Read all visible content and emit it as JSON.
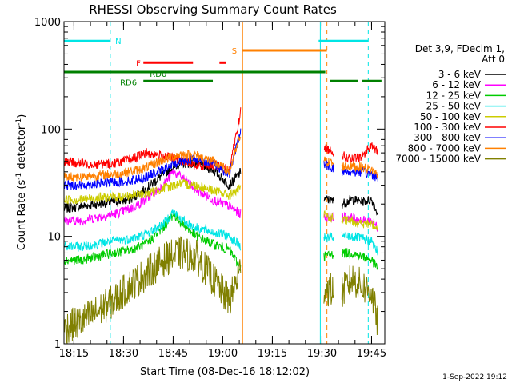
{
  "chart_data": {
    "type": "line",
    "title": "RHESSI Observing Summary Count Rates",
    "xlabel": "Start Time (08-Dec-16 18:12:02)",
    "ylabel": "Count Rate (s-1 detector-1)",
    "ylabel_parts": {
      "pre": "Count Rate (s",
      "sup1": "-1",
      "mid": " detector",
      "sup2": "-1",
      "post": ")"
    },
    "y_scale": "log",
    "ylim": [
      1,
      1000
    ],
    "xlim_minutes": [
      0,
      97
    ],
    "x_ticks": [
      {
        "label": "18:15",
        "min": 3
      },
      {
        "label": "18:30",
        "min": 18
      },
      {
        "label": "18:45",
        "min": 33
      },
      {
        "label": "19:00",
        "min": 48
      },
      {
        "label": "19:15",
        "min": 63
      },
      {
        "label": "19:30",
        "min": 78
      },
      {
        "label": "19:45",
        "min": 93
      }
    ],
    "y_tick_labels": [
      "1",
      "10",
      "100",
      "1000"
    ],
    "legend_header": [
      "Det 3,9, FDecim 1,",
      "Att 0"
    ],
    "legend_position": "right",
    "grid": false,
    "data_gaps_minutes": [
      [
        53.5,
        78.5
      ],
      [
        81.5,
        84
      ]
    ],
    "series": [
      {
        "name": "3 - 6 keV",
        "color": "#000000",
        "x": [
          0,
          5,
          10,
          15,
          20,
          25,
          30,
          35,
          40,
          45,
          50,
          53.5,
          84,
          87,
          90,
          93,
          95
        ],
        "values": [
          18,
          19,
          20,
          21,
          22,
          28,
          38,
          48,
          48,
          42,
          30,
          40,
          20,
          22,
          21,
          22,
          16
        ]
      },
      {
        "name": "6 - 12 keV",
        "color": "#ff00ff",
        "x": [
          0,
          5,
          10,
          15,
          20,
          25,
          30,
          33,
          36,
          40,
          45,
          50,
          53.5,
          84,
          87,
          90,
          93,
          95
        ],
        "values": [
          14,
          14,
          15,
          16,
          18,
          22,
          30,
          40,
          35,
          27,
          22,
          19,
          16,
          15,
          15,
          14,
          14,
          12
        ]
      },
      {
        "name": "12 - 25 keV",
        "color": "#00cc00",
        "x": [
          0,
          5,
          10,
          15,
          20,
          25,
          30,
          33,
          36,
          40,
          45,
          50,
          53.5,
          84,
          87,
          90,
          93,
          95
        ],
        "values": [
          6,
          6,
          6.5,
          7,
          7.5,
          8.5,
          12,
          16,
          13,
          10,
          8.5,
          7.5,
          5,
          7,
          7,
          6.5,
          6,
          5
        ]
      },
      {
        "name": "25 - 50 keV",
        "color": "#00e5e5",
        "x": [
          0,
          5,
          10,
          15,
          20,
          25,
          30,
          33,
          36,
          40,
          45,
          50,
          53.5,
          84,
          87,
          90,
          93,
          95
        ],
        "values": [
          8,
          8,
          8.5,
          9,
          9.5,
          10.5,
          13,
          17,
          14,
          12,
          11,
          10,
          8,
          10,
          10,
          9.5,
          9,
          7
        ]
      },
      {
        "name": "50 - 100 keV",
        "color": "#cccc00",
        "x": [
          0,
          5,
          10,
          15,
          20,
          25,
          30,
          35,
          40,
          45,
          50,
          53.5,
          84,
          87,
          90,
          93,
          95
        ],
        "values": [
          22,
          22,
          23,
          23,
          24,
          25,
          28,
          31,
          30,
          27,
          24,
          28,
          14,
          14,
          13,
          13,
          12
        ]
      },
      {
        "name": "100 - 300 keV",
        "color": "#ff0000",
        "x": [
          0,
          5,
          10,
          15,
          20,
          25,
          30,
          35,
          40,
          45,
          50,
          53.5,
          84,
          87,
          90,
          93,
          95
        ],
        "values": [
          50,
          48,
          47,
          48,
          52,
          60,
          56,
          52,
          45,
          47,
          42,
          150,
          57,
          52,
          55,
          72,
          60
        ]
      },
      {
        "name": "300 - 800 keV",
        "color": "#0000ff",
        "x": [
          0,
          5,
          10,
          15,
          20,
          25,
          30,
          35,
          40,
          45,
          50,
          53.5,
          84,
          87,
          90,
          93,
          95
        ],
        "values": [
          30,
          30,
          31,
          32,
          33,
          36,
          42,
          50,
          53,
          48,
          38,
          100,
          40,
          40,
          40,
          38,
          35
        ]
      },
      {
        "name": "800 - 7000 keV",
        "color": "#ff8000",
        "x": [
          0,
          5,
          10,
          15,
          20,
          25,
          30,
          35,
          40,
          45,
          50,
          53.5,
          84,
          87,
          90,
          93,
          95
        ],
        "values": [
          36,
          36,
          37,
          38,
          40,
          44,
          52,
          58,
          57,
          50,
          40,
          90,
          45,
          45,
          44,
          42,
          38
        ]
      },
      {
        "name": "7000 - 15000 keV",
        "color": "#808000",
        "x": [
          0,
          5,
          10,
          15,
          20,
          25,
          30,
          35,
          40,
          45,
          50,
          53.5,
          84,
          87,
          90,
          93,
          95
        ],
        "values": [
          1.4,
          1.6,
          2,
          2.5,
          3.5,
          4.5,
          6,
          7,
          6.5,
          4,
          2.5,
          5,
          3,
          4,
          3.5,
          3,
          1.5
        ]
      }
    ],
    "state_bars": [
      {
        "label": "N",
        "color": "#00e5e5",
        "y": 660,
        "segments": [
          [
            0,
            14
          ],
          [
            77,
            92
          ]
        ]
      },
      {
        "label": "S",
        "color": "#ff8000",
        "y": 540,
        "segments": [
          [
            54,
            79.5
          ]
        ]
      },
      {
        "label": "F",
        "color": "#ff0000",
        "y": 415,
        "segments": [
          [
            24,
            39
          ],
          [
            47,
            49
          ]
        ]
      },
      {
        "label": "RD0",
        "color": "#008000",
        "y": 340,
        "segments": [
          [
            0,
            79
          ]
        ]
      },
      {
        "label": "RD6",
        "color": "#008000",
        "y": 280,
        "segments": [
          [
            24,
            45
          ],
          [
            80.5,
            89
          ],
          [
            90,
            96
          ]
        ]
      }
    ],
    "vertical_markers": [
      {
        "min": 0,
        "color": "#00e5e5",
        "style": "solid"
      },
      {
        "min": 14,
        "color": "#00e5e5",
        "style": "dashed"
      },
      {
        "min": 54,
        "color": "#ff8000",
        "style": "solid"
      },
      {
        "min": 77.5,
        "color": "#00e5e5",
        "style": "solid"
      },
      {
        "min": 79.5,
        "color": "#ff8000",
        "style": "dashed"
      },
      {
        "min": 92,
        "color": "#00e5e5",
        "style": "dashed"
      }
    ]
  },
  "footer_timestamp": "1-Sep-2022 19:12"
}
